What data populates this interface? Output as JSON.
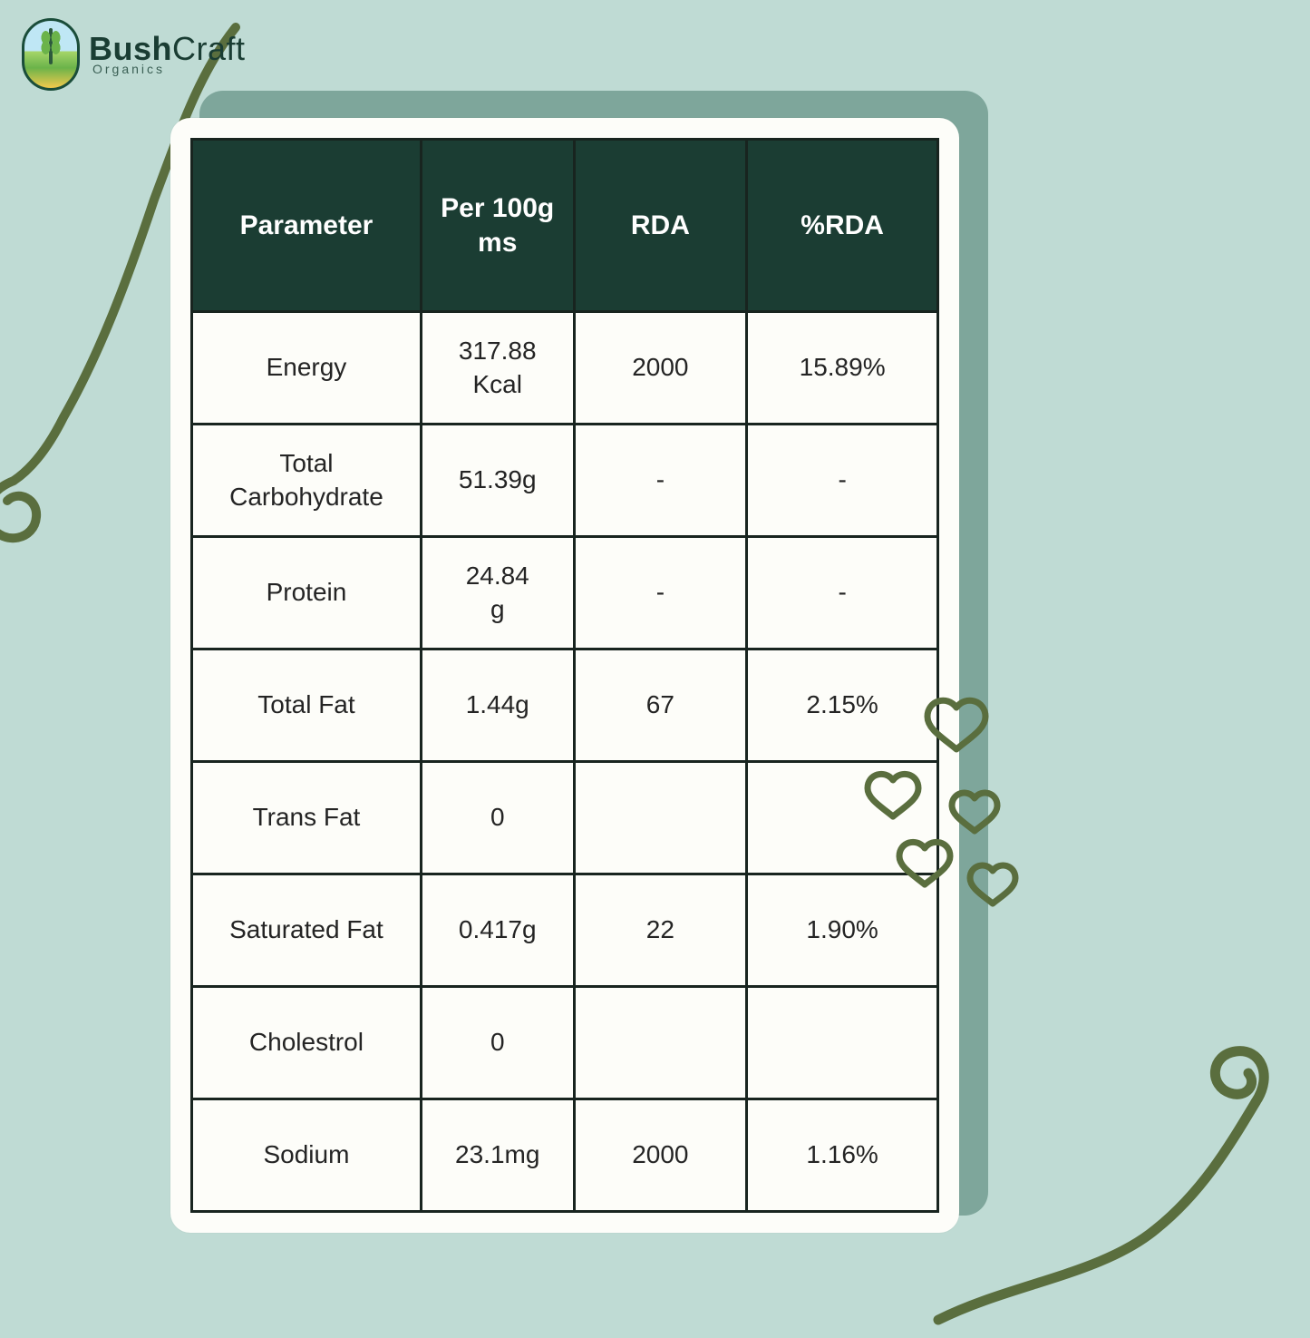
{
  "brand": {
    "name_bold": "Bush",
    "name_light": "Craft",
    "tagline": "Organics"
  },
  "colors": {
    "page_bg": "#bfdbd4",
    "card_bg": "#fdfdf9",
    "shadow_bg": "#7ea69b",
    "header_bg": "#1b3d33",
    "header_text": "#ffffff",
    "cell_text": "#242424",
    "border": "#18241f",
    "vine": "#5a6e3e"
  },
  "table": {
    "columns": [
      {
        "label": "Parameter"
      },
      {
        "label": "Per 100g\nms"
      },
      {
        "label": "RDA"
      },
      {
        "label": "%RDA"
      }
    ],
    "rows": [
      {
        "parameter": "Energy",
        "per100g": "317.88\nKcal",
        "rda": "2000",
        "pct_rda": "15.89%"
      },
      {
        "parameter": "Total\nCarbohydrate",
        "per100g": "51.39g",
        "rda": "-",
        "pct_rda": "-"
      },
      {
        "parameter": "Protein",
        "per100g": "24.84\ng",
        "rda": "-",
        "pct_rda": "-"
      },
      {
        "parameter": "Total Fat",
        "per100g": "1.44g",
        "rda": "67",
        "pct_rda": "2.15%"
      },
      {
        "parameter": "Trans Fat",
        "per100g": "0",
        "rda": "",
        "pct_rda": ""
      },
      {
        "parameter": "Saturated Fat",
        "per100g": "0.417g",
        "rda": "22",
        "pct_rda": "1.90%"
      },
      {
        "parameter": "Cholestrol",
        "per100g": "0",
        "rda": "",
        "pct_rda": ""
      },
      {
        "parameter": "Sodium",
        "per100g": "23.1mg",
        "rda": "2000",
        "pct_rda": "1.16%"
      }
    ]
  }
}
